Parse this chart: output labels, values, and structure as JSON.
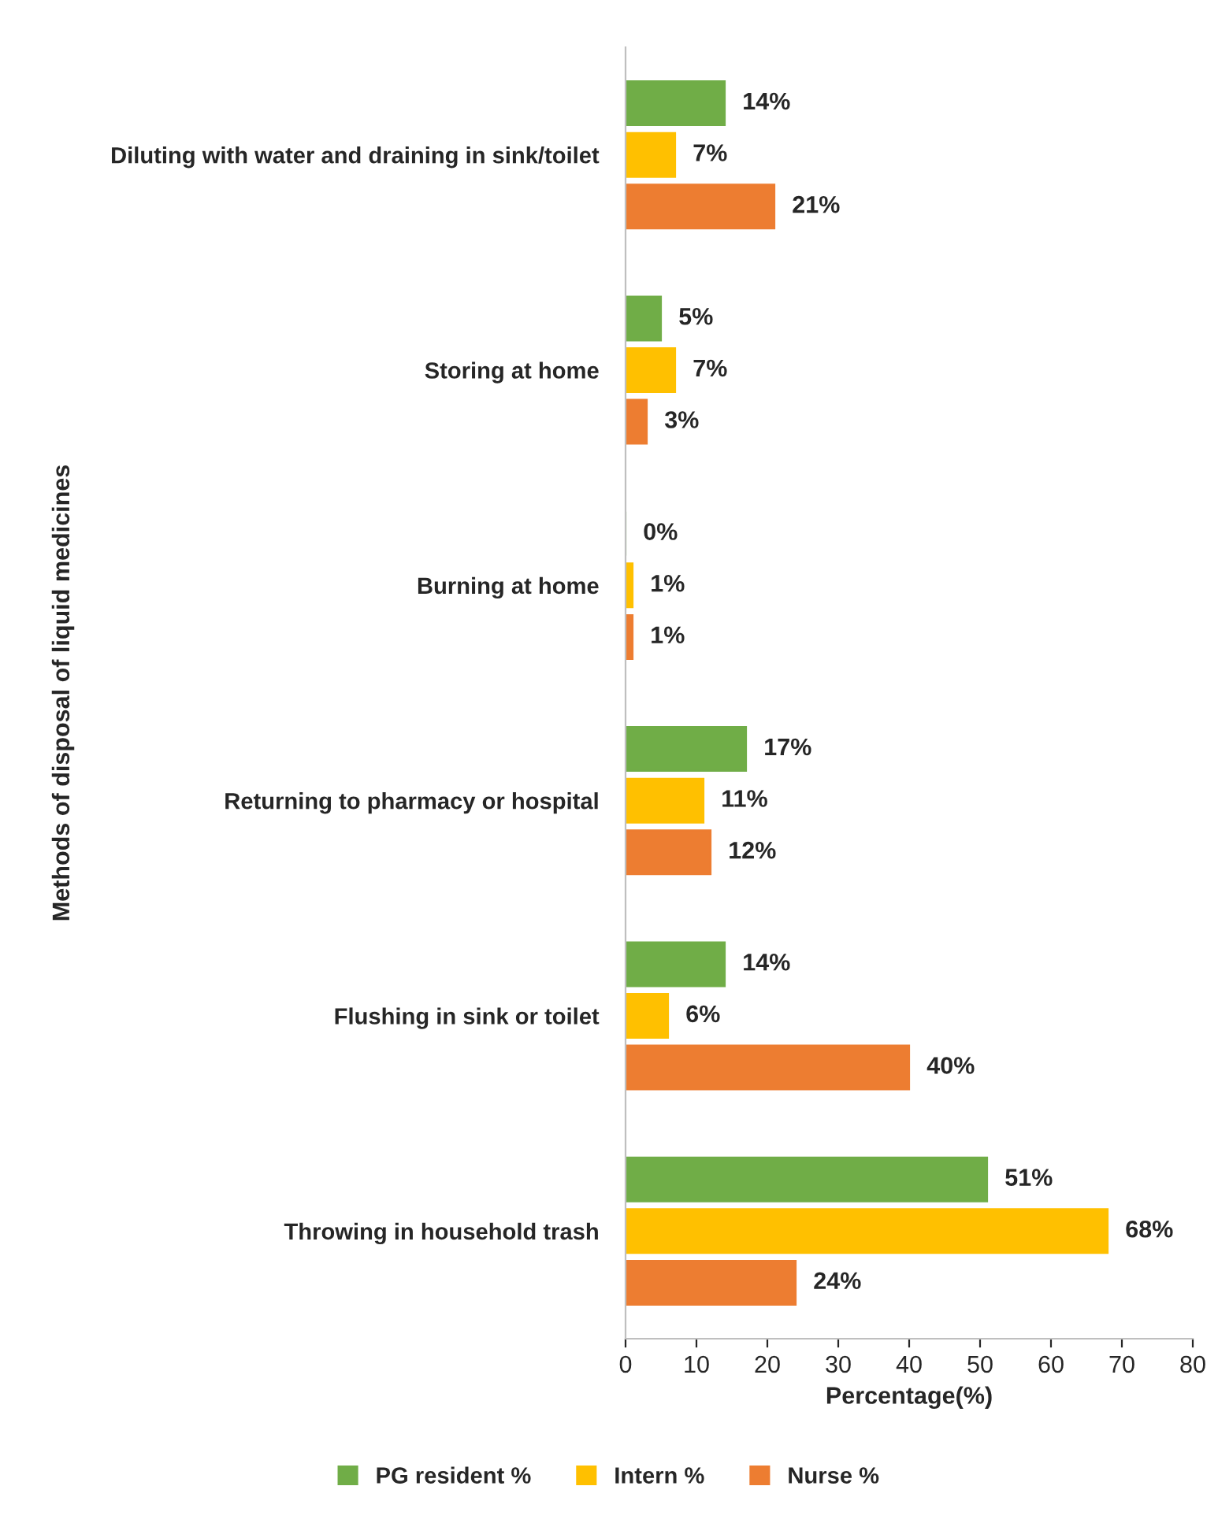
{
  "chart_data": {
    "type": "bar",
    "orientation": "horizontal",
    "xlabel": "Percentage(%)",
    "ylabel": "Methods of disposal of liquid medicines",
    "categories": [
      "Diluting with water and draining in sink/toilet",
      "Storing at home",
      "Burning at home",
      "Returning to pharmacy or hospital",
      "Flushing in sink or toilet",
      "Throwing in household trash"
    ],
    "series": [
      {
        "name": "PG resident %",
        "color": "#70ad47",
        "values": [
          14,
          5,
          0,
          17,
          14,
          51
        ],
        "value_labels": [
          "14%",
          "5%",
          "0%",
          "17%",
          "14%",
          "51%"
        ]
      },
      {
        "name": "Intern %",
        "color": "#ffc000",
        "values": [
          7,
          7,
          1,
          11,
          6,
          68
        ],
        "value_labels": [
          "7%",
          "7%",
          "1%",
          "11%",
          "6%",
          "68%"
        ]
      },
      {
        "name": "Nurse %",
        "color": "#ed7d31",
        "values": [
          21,
          3,
          1,
          12,
          40,
          24
        ],
        "value_labels": [
          "21%",
          "3%",
          "1%",
          "12%",
          "40%",
          "24%"
        ]
      }
    ],
    "xlim": [
      0,
      80
    ],
    "xticks": [
      0,
      10,
      20,
      30,
      40,
      50,
      60,
      70,
      80
    ],
    "grid": false,
    "legend": "bottom"
  }
}
